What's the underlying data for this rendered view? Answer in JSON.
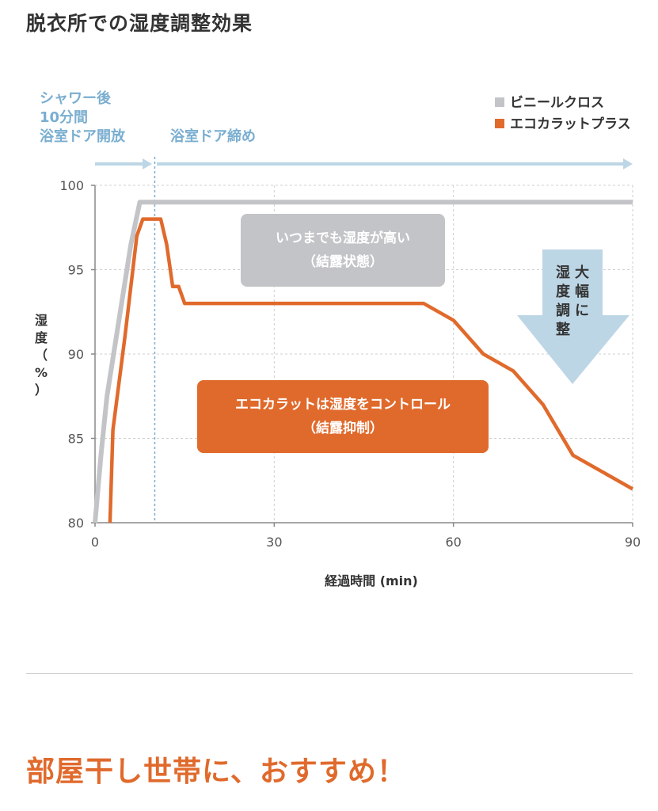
{
  "page": {
    "title": "脱衣所での湿度調整効果",
    "bottom_heading": "部屋干し世帯に、おすすめ！"
  },
  "colors": {
    "vinyl": "#c3c4c7",
    "eco": "#e06a2c",
    "phase": "#7aaed0",
    "arrow": "#bdd6e6",
    "axis": "#888888",
    "callout_gray": "#c3c4c7"
  },
  "chart_data": {
    "type": "line",
    "xlabel": "経過時間 (min)",
    "ylabel": "湿度（%）",
    "xlim": [
      0,
      90
    ],
    "ylim": [
      80,
      100
    ],
    "x_ticks": [
      "0",
      "30",
      "60",
      "90"
    ],
    "y_ticks": [
      "80",
      "85",
      "90",
      "95",
      "100"
    ],
    "grid": true,
    "legend_position": "top-right",
    "series": [
      {
        "name": "ビニールクロス",
        "color": "#c3c4c7",
        "points": [
          [
            0,
            80
          ],
          [
            1,
            84
          ],
          [
            2,
            87.5
          ],
          [
            4,
            92
          ],
          [
            6,
            96.5
          ],
          [
            7.5,
            99
          ],
          [
            90,
            99
          ]
        ]
      },
      {
        "name": "エコカラットプラス",
        "color": "#e06a2c",
        "points": [
          [
            2.5,
            80
          ],
          [
            3,
            85.5
          ],
          [
            5,
            91
          ],
          [
            7,
            97
          ],
          [
            8,
            98
          ],
          [
            11,
            98
          ],
          [
            12,
            96.5
          ],
          [
            13,
            94
          ],
          [
            14,
            94
          ],
          [
            15,
            93
          ],
          [
            55,
            93
          ],
          [
            60,
            92
          ],
          [
            65,
            90
          ],
          [
            70,
            89
          ],
          [
            75,
            87
          ],
          [
            80,
            84
          ],
          [
            90,
            82
          ]
        ]
      }
    ],
    "phases": [
      {
        "label_lines": [
          "シャワー後",
          "10分間",
          "浴室ドア開放"
        ]
      },
      {
        "label_lines": [
          "浴室ドア締め"
        ]
      }
    ],
    "phase_boundary_x": 10,
    "annotations": {
      "high_humidity": [
        "いつまでも湿度が高い",
        "（結露状態）"
      ],
      "eco_control": [
        "エコカラットは湿度をコントロール",
        "（結露抑制）"
      ],
      "big_adjust": [
        "大幅に",
        "湿度調整"
      ]
    }
  }
}
